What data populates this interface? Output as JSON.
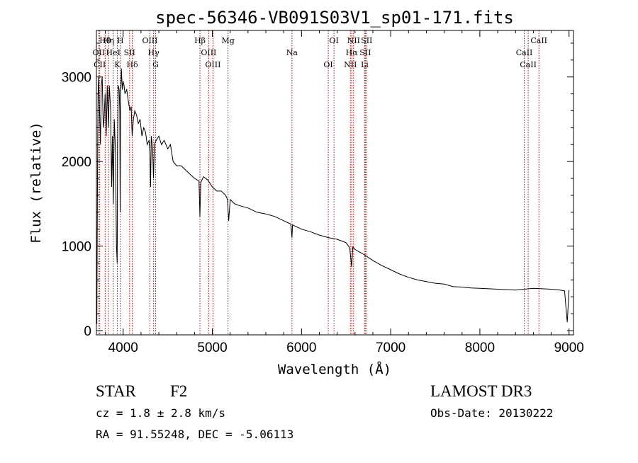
{
  "title": "spec-56346-VB091S03V1_sp01-171.fits",
  "chart_data": {
    "type": "line",
    "title": "spec-56346-VB091S03V1_sp01-171.fits",
    "xlabel": "Wavelength (Å)",
    "ylabel": "Flux (relative)",
    "xlim": [
      3700,
      9050
    ],
    "ylim": [
      -50,
      3550
    ],
    "x_ticks": [
      4000,
      5000,
      6000,
      7000,
      8000,
      9000
    ],
    "y_ticks": [
      0,
      1000,
      2000,
      3000
    ],
    "grid": false,
    "series": [
      {
        "name": "flux",
        "x": [
          3700,
          3705,
          3712,
          3718,
          3725,
          3735,
          3745,
          3755,
          3765,
          3775,
          3782,
          3790,
          3798,
          3810,
          3822,
          3835,
          3845,
          3860,
          3870,
          3880,
          3889,
          3900,
          3915,
          3925,
          3933,
          3938,
          3945,
          3955,
          3962,
          3966,
          3970,
          3980,
          3990,
          4000,
          4010,
          4020,
          4040,
          4060,
          4075,
          4090,
          4101,
          4115,
          4130,
          4150,
          4170,
          4190,
          4210,
          4230,
          4250,
          4270,
          4290,
          4300,
          4307,
          4315,
          4330,
          4340,
          4350,
          4370,
          4400,
          4430,
          4460,
          4500,
          4530,
          4560,
          4600,
          4650,
          4700,
          4750,
          4800,
          4850,
          4861,
          4870,
          4900,
          4950,
          5000,
          5050,
          5100,
          5150,
          5170,
          5183,
          5200,
          5250,
          5300,
          5400,
          5500,
          5600,
          5700,
          5800,
          5880,
          5893,
          5900,
          6000,
          6100,
          6200,
          6300,
          6400,
          6500,
          6540,
          6563,
          6575,
          6600,
          6700,
          6800,
          6900,
          7000,
          7100,
          7200,
          7300,
          7400,
          7500,
          7600,
          7700,
          7800,
          7900,
          8000,
          8100,
          8200,
          8300,
          8400,
          8500,
          8600,
          8700,
          8800,
          8900,
          8950,
          8980,
          9000
        ],
        "values": [
          600,
          80,
          1800,
          2800,
          3000,
          2600,
          2200,
          2900,
          3000,
          2500,
          2400,
          2600,
          2800,
          2300,
          2900,
          2400,
          2900,
          2600,
          1700,
          2300,
          1500,
          2500,
          2100,
          1000,
          800,
          2200,
          2900,
          2850,
          2600,
          1400,
          2700,
          3100,
          2850,
          2950,
          2900,
          2800,
          2850,
          2700,
          2600,
          2650,
          2300,
          2500,
          2600,
          2550,
          2450,
          2500,
          2300,
          2400,
          2350,
          2200,
          2250,
          2100,
          1700,
          2300,
          2150,
          1800,
          2200,
          2250,
          2300,
          2200,
          2250,
          2150,
          2200,
          2000,
          1950,
          1950,
          1900,
          1850,
          1800,
          1770,
          1350,
          1750,
          1820,
          1780,
          1700,
          1650,
          1650,
          1600,
          1550,
          1300,
          1550,
          1500,
          1480,
          1450,
          1400,
          1380,
          1350,
          1300,
          1260,
          1100,
          1250,
          1200,
          1170,
          1130,
          1100,
          1080,
          1040,
          980,
          750,
          990,
          960,
          900,
          830,
          770,
          720,
          670,
          630,
          600,
          580,
          560,
          550,
          520,
          515,
          505,
          500,
          495,
          490,
          485,
          480,
          490,
          500,
          495,
          490,
          480,
          470,
          100,
          480
        ]
      }
    ],
    "spectral_lines": [
      {
        "label": "Hθ",
        "wavelength": 3798
      },
      {
        "label": "OII",
        "wavelength": 3727
      },
      {
        "label": "CII",
        "wavelength": 3737
      },
      {
        "label": "Hη",
        "wavelength": 3835
      },
      {
        "label": "HeI",
        "wavelength": 3889
      },
      {
        "label": "K",
        "wavelength": 3934
      },
      {
        "label": "H",
        "wavelength": 3969
      },
      {
        "label": "SII",
        "wavelength": 4072
      },
      {
        "label": "Hδ",
        "wavelength": 4102
      },
      {
        "label": "OIII",
        "wavelength": 4300
      },
      {
        "label": "Hγ",
        "wavelength": 4341
      },
      {
        "label": "G",
        "wavelength": 4364
      },
      {
        "label": "Hβ",
        "wavelength": 4861
      },
      {
        "label": "OIII",
        "wavelength": 4959
      },
      {
        "label": "OIII",
        "wavelength": 5007
      },
      {
        "label": "Mg",
        "wavelength": 5176
      },
      {
        "label": "Na",
        "wavelength": 5893
      },
      {
        "label": "OI",
        "wavelength": 6300
      },
      {
        "label": "OI",
        "wavelength": 6364
      },
      {
        "label": "Hα",
        "wavelength": 6563
      },
      {
        "label": "NII",
        "wavelength": 6548
      },
      {
        "label": "NII",
        "wavelength": 6584
      },
      {
        "label": "SII",
        "wavelength": 6716
      },
      {
        "label": "Li",
        "wavelength": 6708
      },
      {
        "label": "SII",
        "wavelength": 6731
      },
      {
        "label": "CaII",
        "wavelength": 8498
      },
      {
        "label": "CaII",
        "wavelength": 8542
      },
      {
        "label": "CaII",
        "wavelength": 8662
      }
    ]
  },
  "info": {
    "object_class": "STAR",
    "subclass": "F2",
    "survey": "LAMOST DR3",
    "cz": "cz = 1.8 ± 2.8 km/s",
    "obs_date": "Obs-Date: 20130222",
    "coords": "RA =  91.55248, DEC =  -5.06113"
  },
  "colors": {
    "line_marker": "#cc0000",
    "spectrum": "#000000",
    "axes": "#000000"
  }
}
